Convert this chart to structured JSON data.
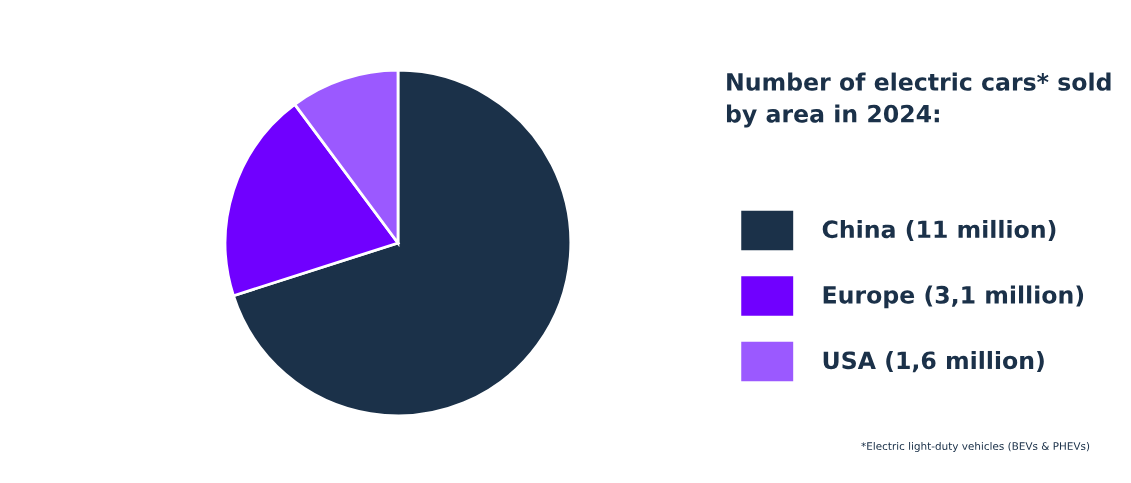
{
  "chart_data": {
    "type": "pie",
    "title": "Number of electric cars* sold by area in 2024:",
    "categories": [
      "China (11 million)",
      "Europe (3,1 million)",
      "USA (1,6 million)"
    ],
    "values": [
      11,
      3.1,
      1.6
    ],
    "colors": [
      "#1b3149",
      "#7000ff",
      "#9b59ff"
    ],
    "legend": "right",
    "annotations": [
      "*Electric light-duty vehicles (BEVs & PHEVs)"
    ]
  }
}
